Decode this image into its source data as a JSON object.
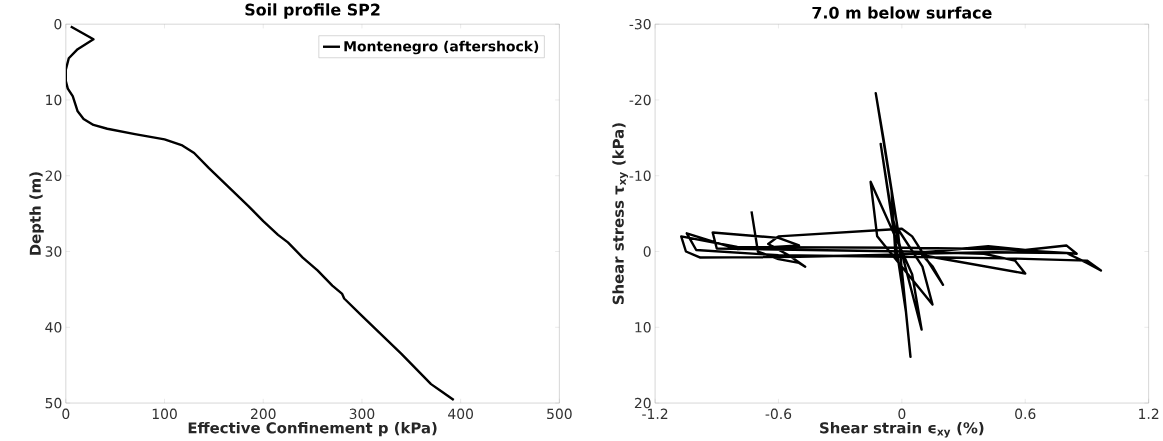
{
  "chart_data": [
    {
      "type": "line",
      "title": "Soil profile SP2",
      "xlabel": "Effective Confinement p (kPa)",
      "ylabel": "Depth (m)",
      "xlim": [
        0,
        500
      ],
      "ylim": [
        50,
        0
      ],
      "xticks": [
        0,
        100,
        200,
        300,
        400,
        500
      ],
      "yticks": [
        0,
        10,
        20,
        30,
        40,
        50
      ],
      "grid": false,
      "legend": "top right",
      "marker": "none",
      "line_style": "solid",
      "series": [
        {
          "name": "Montenegro (aftershock)",
          "color": "#000000",
          "x": [
            5,
            28,
            12,
            3,
            0,
            0,
            2,
            7,
            12,
            18,
            28,
            42,
            70,
            100,
            118,
            130,
            145,
            165,
            185,
            200,
            215,
            225,
            240,
            255,
            270,
            280,
            282,
            300,
            320,
            340,
            355,
            370,
            380,
            393
          ],
          "values": [
            0.3,
            2,
            3.3,
            4.5,
            6,
            7.5,
            8.5,
            9.5,
            11.5,
            12.5,
            13.3,
            13.8,
            14.5,
            15.2,
            16,
            17,
            19,
            21.5,
            24,
            26,
            27.8,
            28.8,
            30.8,
            32.5,
            34.5,
            35.6,
            36.2,
            38.5,
            41,
            43.5,
            45.5,
            47.5,
            48.4,
            49.6
          ]
        }
      ]
    },
    {
      "type": "line",
      "title": "7.0 m below surface",
      "xlabel": "Shear strain ϵ$_{xy}$ (%)",
      "ylabel": "Shear stress τ$_{xy}$ (kPa)",
      "xlim": [
        -1.2,
        1.2
      ],
      "ylim": [
        20,
        -30
      ],
      "xticks": [
        -1.2,
        -0.6,
        0,
        0.6,
        1.2
      ],
      "yticks": [
        -30,
        -20,
        -10,
        0,
        10,
        20
      ],
      "grid": false,
      "legend": false,
      "marker": "none",
      "line_style": "solid",
      "series": [
        {
          "color": "#000000",
          "x": [
            -0.03,
            -0.05,
            -0.127,
            -0.09,
            -0.02,
            0.042,
            0.02,
            -0.103,
            -0.05,
            0.096,
            0.05,
            -0.152,
            -0.12,
            0.149,
            0.1,
            -0.02
          ],
          "values": [
            1,
            -8,
            -20.9,
            -15,
            -3,
            13.9,
            8,
            -14.2,
            -5,
            10.3,
            3,
            -9.2,
            -2,
            7,
            2,
            -3
          ]
        },
        {
          "color": "#000000",
          "x": [
            -0.731,
            -0.7,
            -0.6,
            -0.5,
            -0.47,
            -0.55,
            -0.65,
            -0.6,
            -0.3,
            0,
            0.05,
            0.2,
            0.15,
            0.1,
            0.6,
            0.55,
            0.4,
            0.02,
            -0.9,
            -0.92,
            -0.6,
            -0.5,
            -0.8,
            -1.046,
            -1.0,
            -0.6,
            0,
            0.5,
            0.9,
            0.968,
            0.9,
            0.8,
            0.5,
            0,
            -0.8,
            -1.073,
            -1.05,
            -0.98,
            -0.5,
            0,
            0.42,
            0.6,
            0.8,
            0.85,
            0.8,
            0.45,
            0.05
          ],
          "values": [
            -5.3,
            0,
            1,
            1.5,
            2,
            0.5,
            -1,
            -2,
            -2.5,
            -3,
            -2,
            4.4,
            2,
            0.5,
            2.9,
            1.2,
            0.3,
            0,
            -0.4,
            -2.5,
            -1.8,
            -0.8,
            -0.3,
            -2.4,
            -0.2,
            0.5,
            0.7,
            0.9,
            1.2,
            2.5,
            1.5,
            0.2,
            -0.3,
            -0.5,
            -0.6,
            -2.0,
            0,
            0.8,
            0.7,
            0.4,
            -0.7,
            -0.2,
            -0.8,
            0.3,
            0.2,
            0.1,
            0.3
          ]
        }
      ]
    }
  ]
}
